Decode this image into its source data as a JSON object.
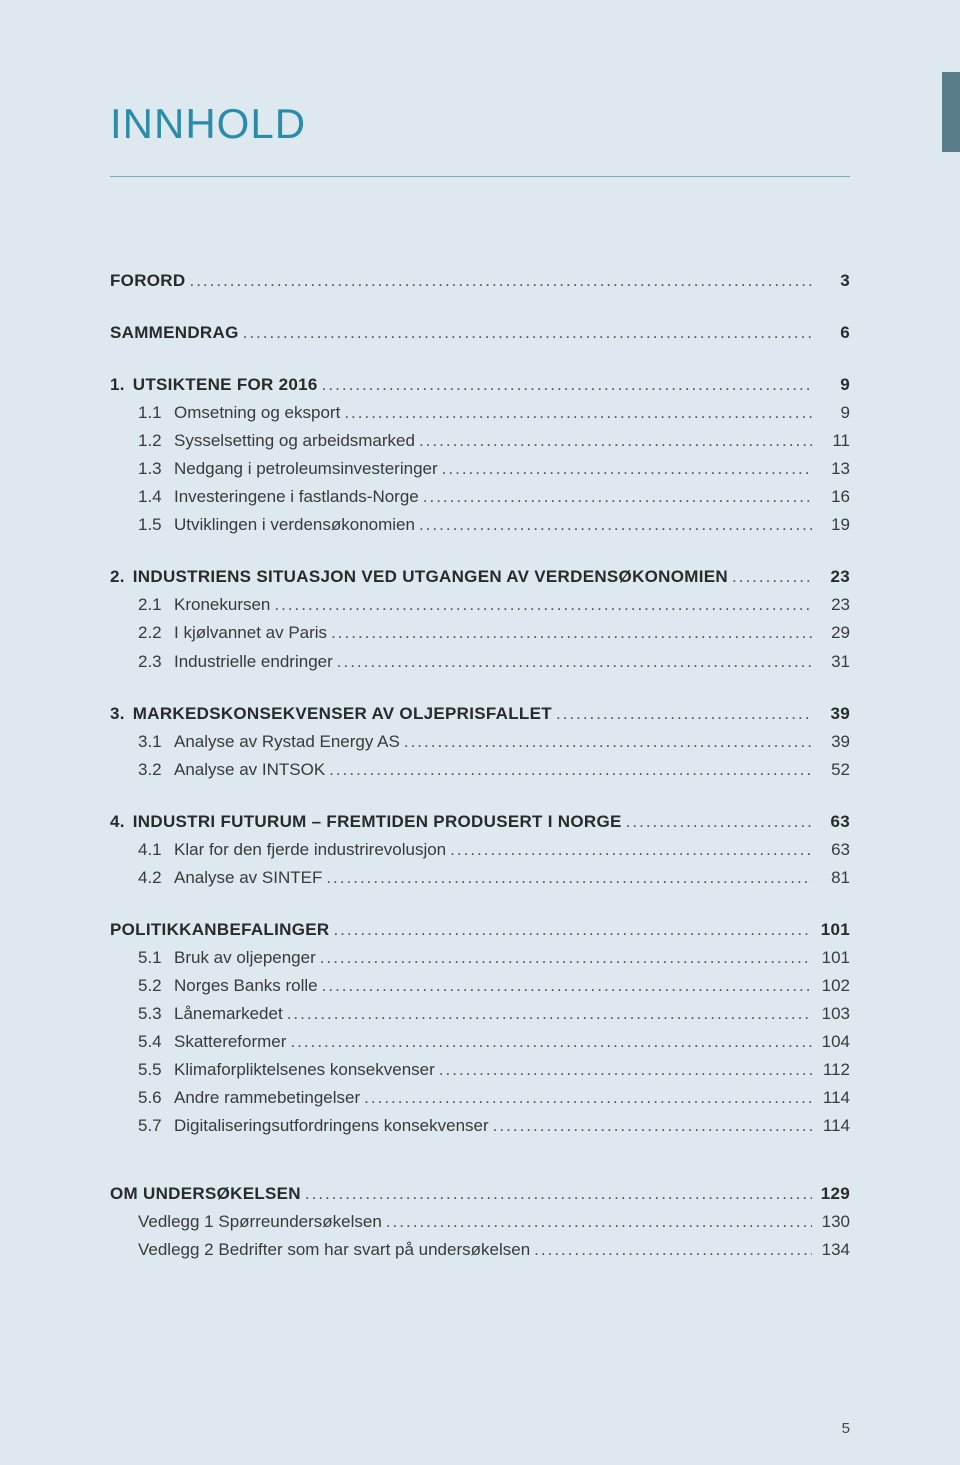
{
  "colors": {
    "page_bg": "#dde9ee",
    "title_color": "#2b8ba8",
    "rule_color": "#7fa8b8",
    "text_color": "#3a3a3a",
    "side_tab": "#5a7d8c"
  },
  "title": "INNHOLD",
  "page_number": "5",
  "toc": [
    {
      "heading": {
        "label": "FORORD",
        "page": "3"
      }
    },
    {
      "heading": {
        "label": "SAMMENDRAG",
        "page": "6"
      }
    },
    {
      "heading": {
        "num": "1.",
        "label": "UTSIKTENE FOR 2016",
        "page": "9"
      },
      "items": [
        {
          "num": "1.1",
          "label": "Omsetning og eksport",
          "page": "9"
        },
        {
          "num": "1.2",
          "label": "Sysselsetting og arbeidsmarked",
          "page": "11"
        },
        {
          "num": "1.3",
          "label": "Nedgang i petroleumsinvesteringer",
          "page": "13"
        },
        {
          "num": "1.4",
          "label": "Investeringene i fastlands-Norge",
          "page": "16"
        },
        {
          "num": "1.5",
          "label": "Utviklingen i verdensøkonomien",
          "page": "19"
        }
      ]
    },
    {
      "heading": {
        "num": "2.",
        "label": "INDUSTRIENS SITUASJON VED UTGANGEN AV VERDENSØKONOMIEN",
        "page": "23"
      },
      "items": [
        {
          "num": "2.1",
          "label": "Kronekursen",
          "page": "23"
        },
        {
          "num": "2.2",
          "label": "I kjølvannet av Paris",
          "page": "29"
        },
        {
          "num": "2.3",
          "label": "Industrielle endringer",
          "page": "31"
        }
      ]
    },
    {
      "heading": {
        "num": "3.",
        "label": "MARKEDSKONSEKVENSER AV OLJEPRISFALLET",
        "page": "39"
      },
      "items": [
        {
          "num": "3.1",
          "label": "Analyse av Rystad Energy AS",
          "page": "39"
        },
        {
          "num": "3.2",
          "label": "Analyse av INTSOK",
          "page": "52"
        }
      ]
    },
    {
      "heading": {
        "num": "4.",
        "label": "INDUSTRI FUTURUM – FREMTIDEN PRODUSERT I NORGE",
        "page": "63"
      },
      "items": [
        {
          "num": "4.1",
          "label": "Klar for den fjerde industrirevolusjon",
          "page": "63"
        },
        {
          "num": "4.2",
          "label": "Analyse av SINTEF",
          "page": "81"
        }
      ]
    },
    {
      "heading": {
        "label": "POLITIKKANBEFALINGER",
        "page": "101"
      },
      "items": [
        {
          "num": "5.1",
          "label": "Bruk av oljepenger",
          "page": "101"
        },
        {
          "num": "5.2",
          "label": "Norges Banks rolle",
          "page": "102"
        },
        {
          "num": "5.3",
          "label": "Lånemarkedet",
          "page": "103"
        },
        {
          "num": "5.4",
          "label": "Skattereformer",
          "page": "104"
        },
        {
          "num": "5.5",
          "label": "Klimaforpliktelsenes konsekvenser",
          "page": "112"
        },
        {
          "num": "5.6",
          "label": "Andre rammebetingelser",
          "page": "114"
        },
        {
          "num": "5.7",
          "label": "Digitaliseringsutfordringens konsekvenser",
          "page": "114"
        }
      ]
    },
    {
      "extra_gap": true,
      "heading": {
        "label": "OM UNDERSØKELSEN",
        "page": "129"
      },
      "appendix": [
        {
          "label": "Vedlegg 1 Spørreundersøkelsen",
          "page": "130"
        },
        {
          "label": "Vedlegg 2 Bedrifter som har svart på undersøkelsen",
          "page": "134"
        }
      ]
    }
  ]
}
